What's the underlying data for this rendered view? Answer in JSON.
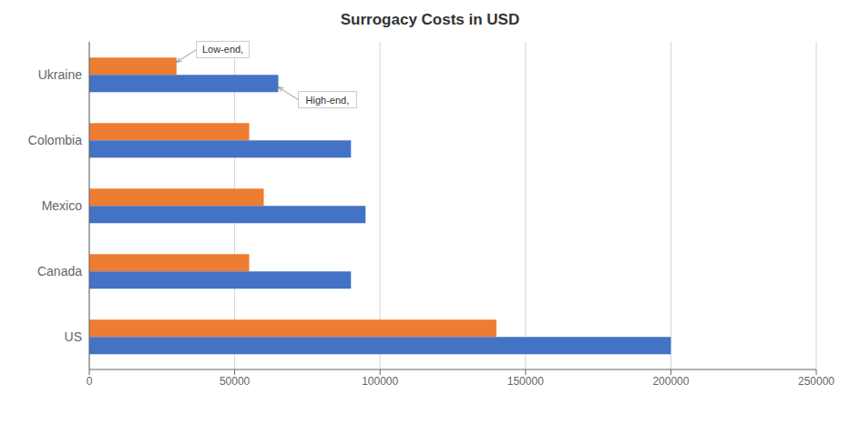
{
  "chart_data": {
    "type": "bar",
    "orientation": "horizontal",
    "title": "Surrogacy Costs in USD",
    "categories": [
      "US",
      "Canada",
      "Mexico",
      "Colombia",
      "Ukraine"
    ],
    "series": [
      {
        "name": "Low-end,",
        "color": "#ED7D31",
        "values": [
          140000,
          55000,
          60000,
          55000,
          30000
        ]
      },
      {
        "name": "High-end,",
        "color": "#4472C4",
        "values": [
          200000,
          90000,
          95000,
          90000,
          65000
        ]
      }
    ],
    "xlim": [
      0,
      250000
    ],
    "xticks": [
      0,
      50000,
      100000,
      150000,
      200000,
      250000
    ],
    "grid": true,
    "annotations": [
      {
        "text": "Low-end,",
        "x": 30000,
        "y": "Ukraine"
      },
      {
        "text": "High-end,",
        "x": 65000,
        "y": "Ukraine"
      }
    ]
  }
}
